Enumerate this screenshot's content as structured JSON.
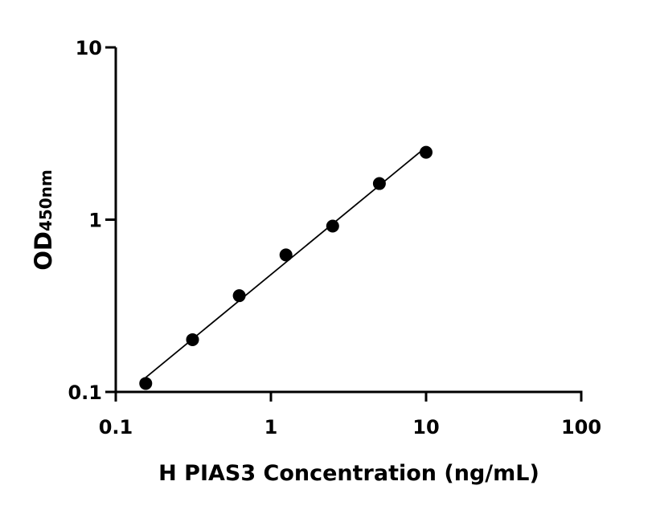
{
  "chart_data": {
    "type": "scatter",
    "xlabel": "H PIAS3 Concentration (ng/mL)",
    "ylabel_main": "OD",
    "ylabel_sub": "450nm",
    "x_scale": "log",
    "y_scale": "log",
    "xlim": [
      0.1,
      100
    ],
    "ylim": [
      0.1,
      10
    ],
    "x_ticks": [
      "0.1",
      "1",
      "10",
      "100"
    ],
    "y_ticks": [
      "0.1",
      "1",
      "10"
    ],
    "grid": false,
    "fit_line": "log-log linear",
    "marker_color": "#000000",
    "x": [
      0.156,
      0.3125,
      0.625,
      1.25,
      2.5,
      5,
      10
    ],
    "y": [
      0.112,
      0.201,
      0.362,
      0.624,
      0.918,
      1.62,
      2.46
    ]
  }
}
